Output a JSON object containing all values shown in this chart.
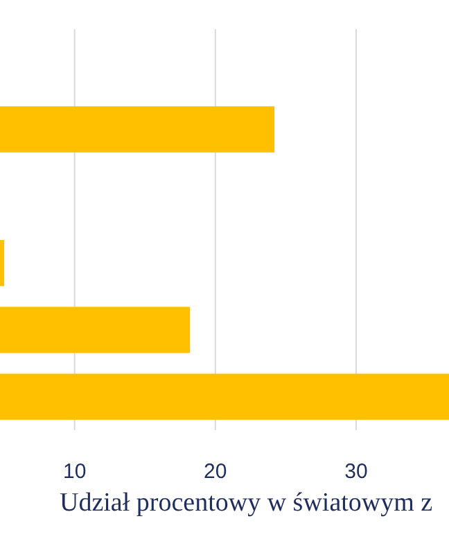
{
  "chart_data": {
    "type": "bar",
    "orientation": "horizontal",
    "categories": [
      null,
      null,
      null,
      null,
      null,
      null
    ],
    "values": [
      null,
      24.2,
      null,
      5.0,
      18.2,
      36.6
    ],
    "color": "#ffc000",
    "xlim": [
      4.7,
      36.6
    ],
    "xticks": [
      10,
      20,
      30
    ],
    "grid": "x",
    "tick_labels": "x",
    "xlabel": "Udział procentowy w światowym z"
  }
}
